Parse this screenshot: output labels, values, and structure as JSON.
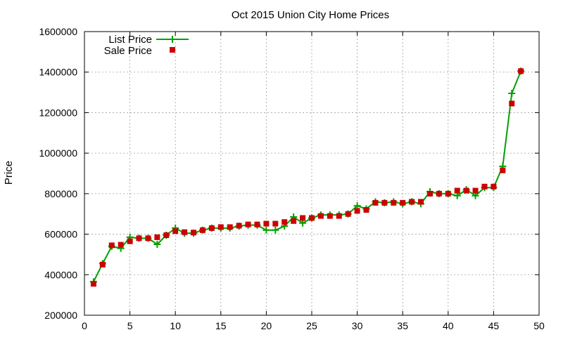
{
  "chart_data": {
    "type": "line",
    "title": "Oct 2015 Union City Home Prices",
    "xlabel": "",
    "ylabel": "Price",
    "xlim": [
      0,
      50
    ],
    "ylim": [
      200000,
      1600000
    ],
    "x_ticks": [
      0,
      5,
      10,
      15,
      20,
      25,
      30,
      35,
      40,
      45,
      50
    ],
    "x_tick_labels": [
      "0",
      "5",
      "10",
      "15",
      "20",
      "25",
      "30",
      "35",
      "40",
      "45",
      "50"
    ],
    "y_ticks": [
      200000,
      400000,
      600000,
      800000,
      1000000,
      1200000,
      1400000,
      1600000
    ],
    "y_tick_labels": [
      "200000",
      "400000",
      "600000",
      "800000",
      "1000000",
      "1200000",
      "1400000",
      "1600000"
    ],
    "grid": true,
    "legend_position": "top-left",
    "x": [
      1,
      2,
      3,
      4,
      5,
      6,
      7,
      8,
      9,
      10,
      11,
      12,
      13,
      14,
      15,
      16,
      17,
      18,
      19,
      20,
      21,
      22,
      23,
      24,
      25,
      26,
      27,
      28,
      29,
      30,
      31,
      32,
      33,
      34,
      35,
      36,
      37,
      38,
      39,
      40,
      41,
      42,
      43,
      44,
      45,
      46,
      47,
      48
    ],
    "series": [
      {
        "name": "List Price",
        "style": "line-plus",
        "color": "#00a000",
        "values": [
          365000,
          455000,
          540000,
          530000,
          585000,
          580000,
          580000,
          550000,
          595000,
          630000,
          605000,
          605000,
          620000,
          630000,
          630000,
          630000,
          640000,
          645000,
          645000,
          620000,
          620000,
          640000,
          685000,
          655000,
          680000,
          695000,
          695000,
          695000,
          700000,
          740000,
          725000,
          760000,
          755000,
          760000,
          750000,
          760000,
          750000,
          810000,
          800000,
          800000,
          790000,
          820000,
          790000,
          830000,
          830000,
          935000,
          1295000,
          1405000
        ]
      },
      {
        "name": "Sale Price",
        "style": "square",
        "color": "#cc0000",
        "values": [
          355000,
          450000,
          545000,
          548000,
          565000,
          580000,
          580000,
          585000,
          595000,
          615000,
          610000,
          608000,
          620000,
          630000,
          635000,
          635000,
          642000,
          648000,
          648000,
          652000,
          652000,
          660000,
          665000,
          680000,
          680000,
          690000,
          690000,
          690000,
          700000,
          715000,
          720000,
          755000,
          755000,
          755000,
          755000,
          760000,
          760000,
          800000,
          800000,
          800000,
          815000,
          815000,
          815000,
          835000,
          835000,
          915000,
          1245000,
          1405000
        ]
      }
    ]
  }
}
